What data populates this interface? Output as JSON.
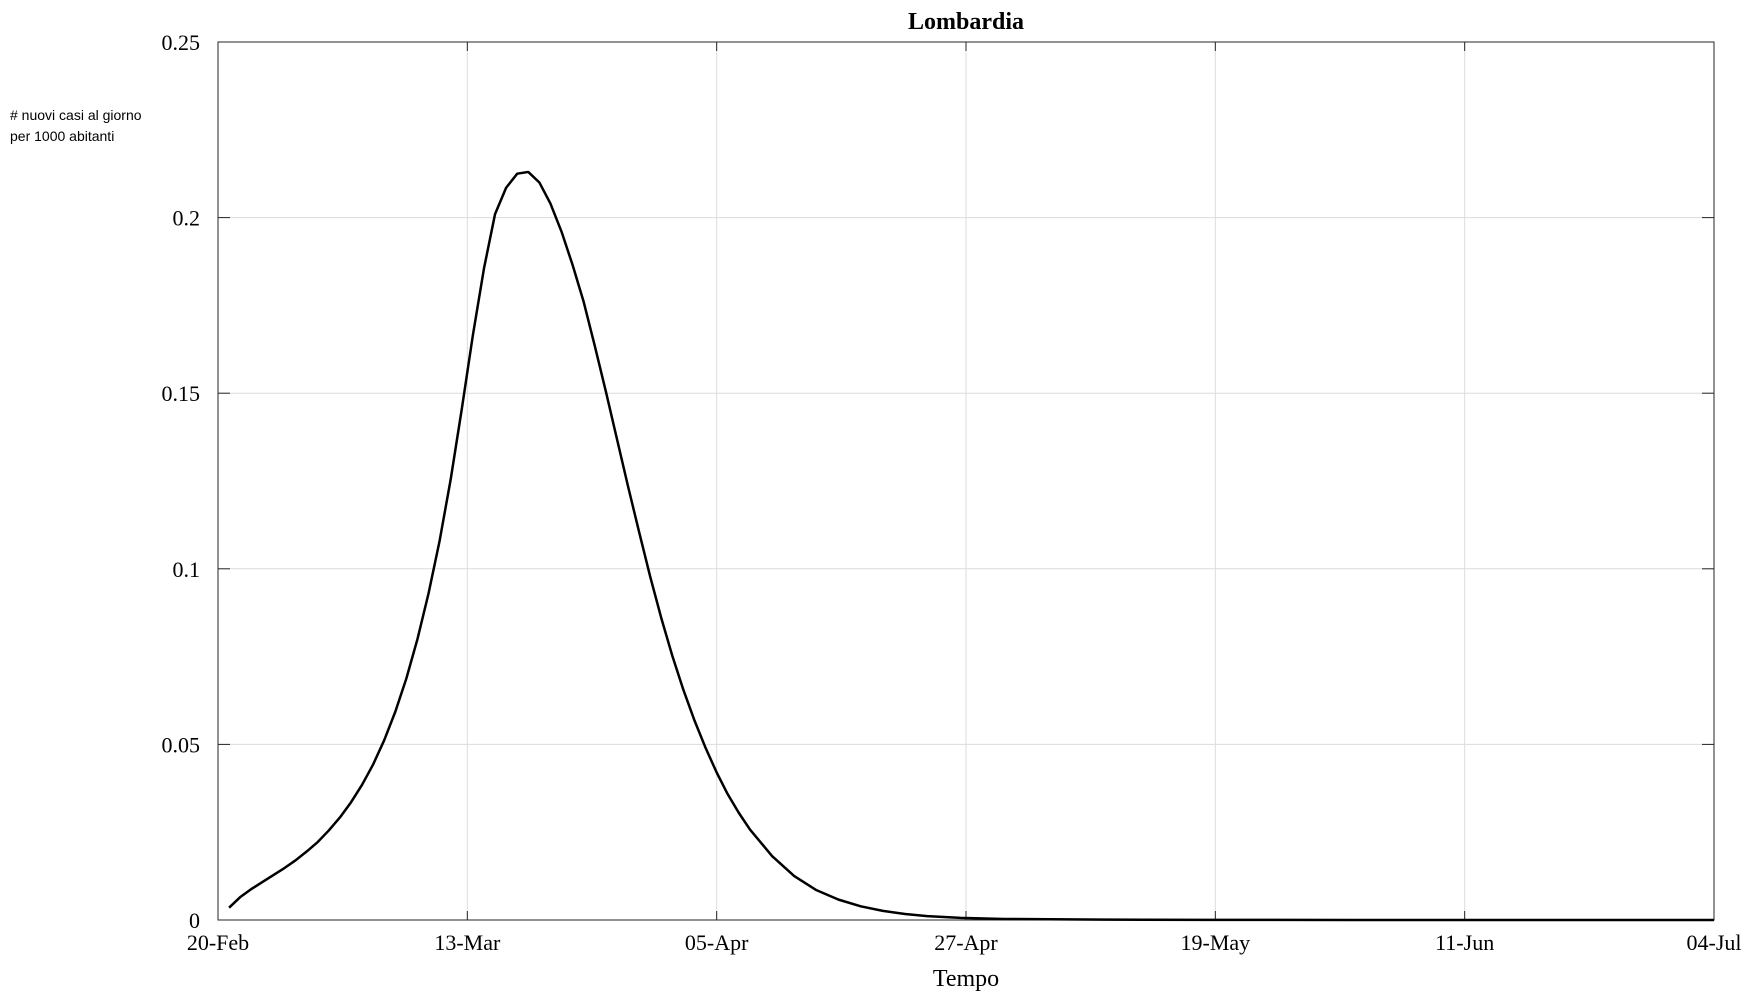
{
  "chart_data": {
    "type": "line",
    "title": "Lombardia",
    "xlabel": "Tempo",
    "ylabel_lines": [
      "# nuovi casi al giorno",
      "per 1000 abitanti"
    ],
    "x_ticks": [
      "20-Feb",
      "13-Mar",
      "05-Apr",
      "27-Apr",
      "19-May",
      "11-Jun",
      "04-Jul"
    ],
    "y_ticks": [
      "0",
      "0.05",
      "0.1",
      "0.15",
      "0.2",
      "0.25"
    ],
    "xlim": [
      "2020-02-20",
      "2020-07-04"
    ],
    "ylim": [
      0,
      0.25
    ],
    "grid": true,
    "series": [
      {
        "x": [
          "2020-02-21",
          "2020-02-22",
          "2020-02-23",
          "2020-02-24",
          "2020-02-25",
          "2020-02-26",
          "2020-02-27",
          "2020-02-28",
          "2020-02-29",
          "2020-03-01",
          "2020-03-02",
          "2020-03-03",
          "2020-03-04",
          "2020-03-05",
          "2020-03-06",
          "2020-03-07",
          "2020-03-08",
          "2020-03-09",
          "2020-03-10",
          "2020-03-11",
          "2020-03-12",
          "2020-03-13",
          "2020-03-14",
          "2020-03-15",
          "2020-03-16",
          "2020-03-17",
          "2020-03-18",
          "2020-03-19",
          "2020-03-20",
          "2020-03-21",
          "2020-03-22",
          "2020-03-23",
          "2020-03-24",
          "2020-03-25",
          "2020-03-26",
          "2020-03-27",
          "2020-03-28",
          "2020-03-29",
          "2020-03-30",
          "2020-03-31",
          "2020-04-01",
          "2020-04-02",
          "2020-04-03",
          "2020-04-04",
          "2020-04-05",
          "2020-04-06",
          "2020-04-07",
          "2020-04-08",
          "2020-04-10",
          "2020-04-12",
          "2020-04-14",
          "2020-04-16",
          "2020-04-18",
          "2020-04-20",
          "2020-04-22",
          "2020-04-24",
          "2020-04-27",
          "2020-05-01",
          "2020-05-05",
          "2020-05-10",
          "2020-05-19",
          "2020-06-01",
          "2020-06-11",
          "2020-07-04"
        ],
        "values": [
          0.0035,
          0.0065,
          0.0088,
          0.0108,
          0.0128,
          0.0148,
          0.017,
          0.0195,
          0.0222,
          0.0255,
          0.0292,
          0.0335,
          0.0385,
          0.0443,
          0.0512,
          0.0593,
          0.0688,
          0.08,
          0.093,
          0.108,
          0.1255,
          0.1455,
          0.1665,
          0.1855,
          0.201,
          0.2085,
          0.2125,
          0.213,
          0.21,
          0.204,
          0.196,
          0.1865,
          0.176,
          0.1635,
          0.1505,
          0.137,
          0.1235,
          0.1105,
          0.0978,
          0.086,
          0.0752,
          0.0655,
          0.0568,
          0.049,
          0.042,
          0.0358,
          0.0305,
          0.0258,
          0.0182,
          0.0125,
          0.0085,
          0.0058,
          0.0039,
          0.0026,
          0.0017,
          0.0011,
          0.0006,
          0.0003,
          0.0002,
          0.0001,
          3e-05,
          1e-05,
          0.0,
          0.0
        ]
      }
    ]
  }
}
